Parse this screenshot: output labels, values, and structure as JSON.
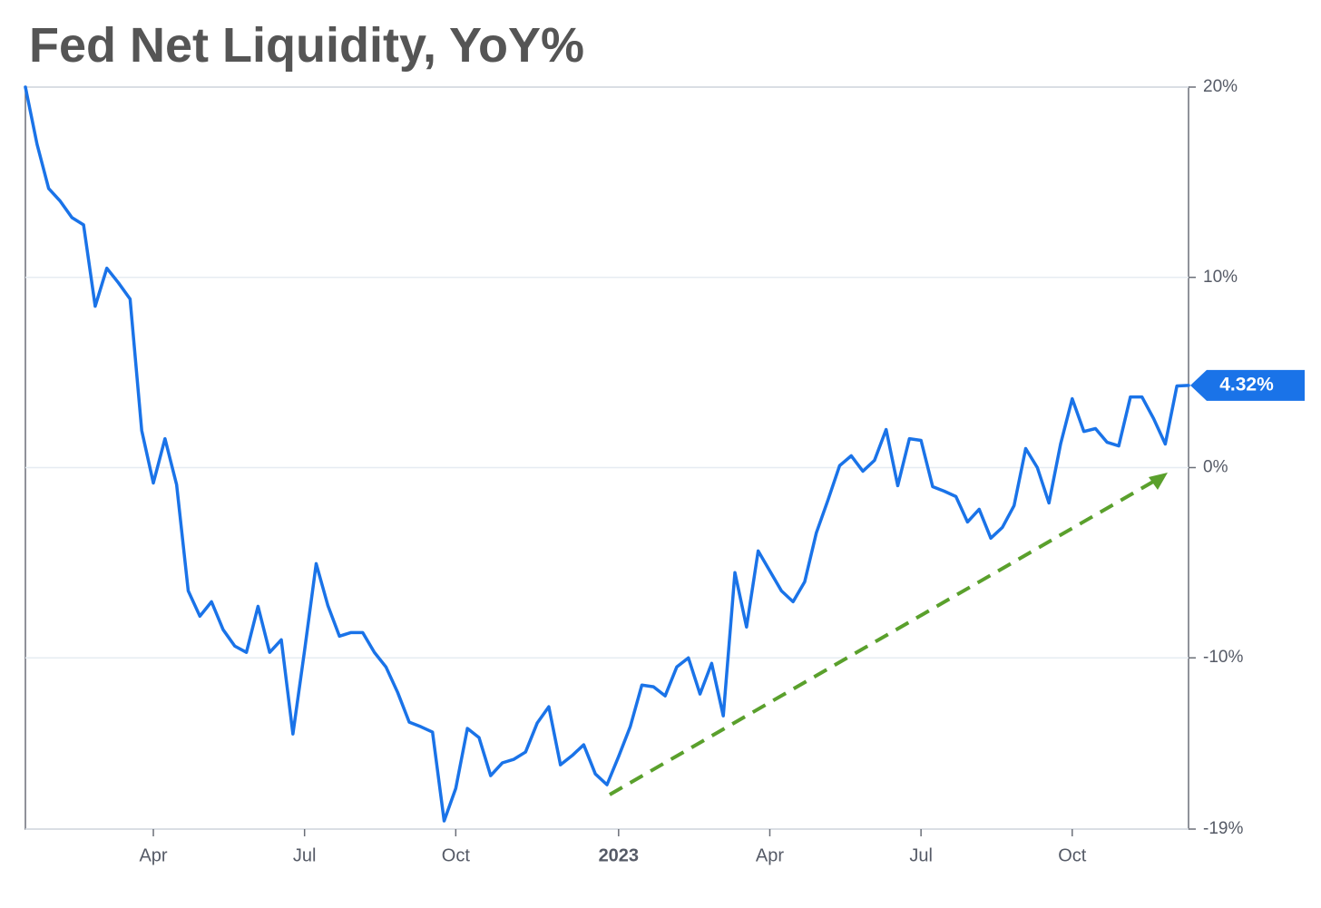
{
  "chart_data": {
    "type": "line",
    "title": "Fed Net Liquidity, YoY%",
    "color": "#1a73e8",
    "grid": true,
    "last_value_label": "4.32%",
    "categories": [
      null,
      null,
      null,
      null,
      null,
      null,
      null,
      null,
      null,
      null,
      null,
      "Apr",
      null,
      null,
      null,
      null,
      null,
      null,
      null,
      null,
      null,
      null,
      null,
      null,
      "Jul",
      null,
      null,
      null,
      null,
      null,
      null,
      null,
      null,
      null,
      null,
      null,
      null,
      "Oct",
      null,
      null,
      null,
      null,
      null,
      null,
      null,
      null,
      null,
      null,
      null,
      null,
      null,
      "2023",
      null,
      null,
      null,
      null,
      null,
      null,
      null,
      null,
      null,
      null,
      null,
      null,
      "Apr",
      null,
      null,
      null,
      null,
      null,
      null,
      null,
      null,
      null,
      null,
      null,
      null,
      "Jul",
      null,
      null,
      null,
      null,
      null,
      null,
      null,
      null,
      null,
      null,
      null,
      null,
      "Oct",
      null,
      null,
      null,
      null,
      null,
      null,
      null,
      null,
      null,
      null
    ],
    "values": [
      20,
      17,
      14.67,
      14,
      13.14,
      12.76,
      8.48,
      10.48,
      9.71,
      8.86,
      1.95,
      -0.81,
      1.52,
      -0.9,
      -6.48,
      -7.81,
      -7.05,
      -8.52,
      -9.38,
      -9.71,
      -7.29,
      -9.71,
      -9.05,
      -14,
      -9.62,
      -5.05,
      -7.24,
      -8.86,
      -8.67,
      -8.67,
      -9.71,
      -10.48,
      -11.81,
      -13.38,
      -13.62,
      -13.9,
      -18.57,
      -16.86,
      -13.71,
      -14.19,
      -16.19,
      -15.52,
      -15.33,
      -14.95,
      -13.43,
      -12.57,
      -15.62,
      -15.14,
      -14.57,
      -16.1,
      -16.67,
      -15.19,
      -13.62,
      -11.43,
      -11.52,
      -12,
      -10.48,
      -10,
      -11.9,
      -10.29,
      -13.05,
      -5.52,
      -8.38,
      -4.38,
      -5.43,
      -6.48,
      -7.05,
      -6,
      -3.43,
      -1.71,
      0.1,
      0.62,
      -0.19,
      0.38,
      2,
      -0.95,
      1.52,
      1.43,
      -1,
      -1.24,
      -1.52,
      -2.86,
      -2.19,
      -3.71,
      -3.14,
      -2,
      1,
      0,
      -1.86,
      1.24,
      3.62,
      1.9,
      2.05,
      1.33,
      1.14,
      3.71,
      3.71,
      2.57,
      1.24,
      4.29,
      4.32
    ],
    "ylim": [
      -19,
      20
    ],
    "yticks": [
      {
        "value": 20,
        "label": "20%"
      },
      {
        "value": 10,
        "label": "10%"
      },
      {
        "value": 0,
        "label": "0%"
      },
      {
        "value": -10,
        "label": "-10%"
      },
      {
        "value": -19,
        "label": "-19%"
      }
    ]
  }
}
